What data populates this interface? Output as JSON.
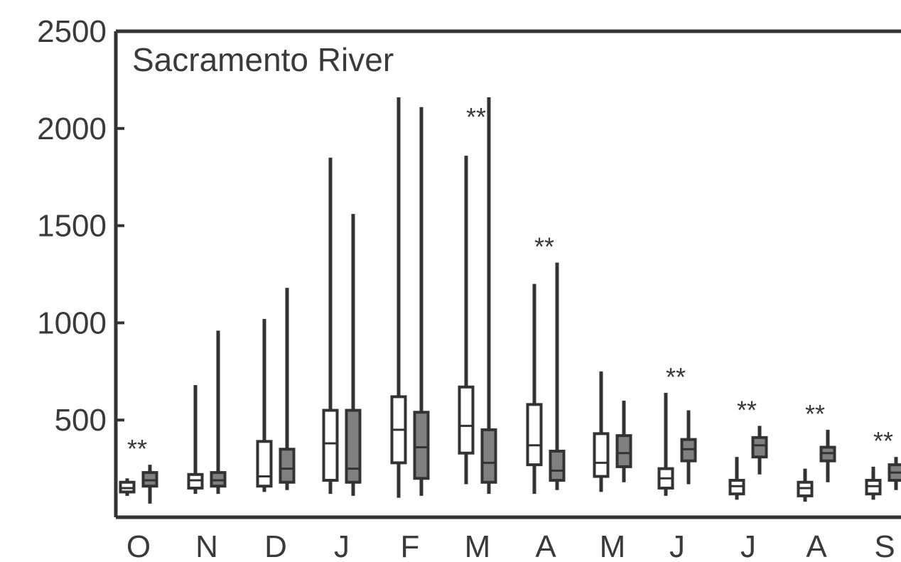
{
  "chart_data": {
    "type": "box",
    "title": "Sacramento River",
    "xlabel": "",
    "ylabel": "",
    "ylim": [
      0,
      2500
    ],
    "yticks": [
      500,
      1000,
      1500,
      2000,
      2500
    ],
    "ytick_labels": [
      "500",
      "1000",
      "1500",
      "2000",
      "2500"
    ],
    "grid": false,
    "categories": [
      "O",
      "N",
      "D",
      "J",
      "F",
      "M",
      "A",
      "M",
      "J",
      "J",
      "A",
      "S"
    ],
    "significance_marker": "**",
    "significant": [
      true,
      false,
      false,
      false,
      false,
      true,
      true,
      false,
      true,
      true,
      true,
      true
    ],
    "series": [
      {
        "fill": "#ffffff",
        "boxes": [
          {
            "min": 110,
            "q1": 130,
            "median": 150,
            "q3": 180,
            "max": 200
          },
          {
            "min": 120,
            "q1": 150,
            "median": 190,
            "q3": 220,
            "max": 680
          },
          {
            "min": 130,
            "q1": 160,
            "median": 210,
            "q3": 390,
            "max": 1020
          },
          {
            "min": 120,
            "q1": 190,
            "median": 380,
            "q3": 550,
            "max": 1850
          },
          {
            "min": 100,
            "q1": 280,
            "median": 450,
            "q3": 620,
            "max": 2160
          },
          {
            "min": 170,
            "q1": 330,
            "median": 470,
            "q3": 670,
            "max": 1860
          },
          {
            "min": 120,
            "q1": 270,
            "median": 370,
            "q3": 580,
            "max": 1200
          },
          {
            "min": 130,
            "q1": 210,
            "median": 280,
            "q3": 430,
            "max": 750
          },
          {
            "min": 110,
            "q1": 150,
            "median": 200,
            "q3": 250,
            "max": 640
          },
          {
            "min": 90,
            "q1": 120,
            "median": 160,
            "q3": 190,
            "max": 310
          },
          {
            "min": 80,
            "q1": 110,
            "median": 150,
            "q3": 180,
            "max": 250
          },
          {
            "min": 90,
            "q1": 120,
            "median": 160,
            "q3": 190,
            "max": 260
          }
        ]
      },
      {
        "fill": "#808080",
        "boxes": [
          {
            "min": 70,
            "q1": 160,
            "median": 190,
            "q3": 230,
            "max": 270
          },
          {
            "min": 120,
            "q1": 160,
            "median": 190,
            "q3": 230,
            "max": 960
          },
          {
            "min": 140,
            "q1": 180,
            "median": 250,
            "q3": 350,
            "max": 1180
          },
          {
            "min": 110,
            "q1": 180,
            "median": 250,
            "q3": 550,
            "max": 1560
          },
          {
            "min": 110,
            "q1": 200,
            "median": 360,
            "q3": 540,
            "max": 2110
          },
          {
            "min": 120,
            "q1": 180,
            "median": 280,
            "q3": 450,
            "max": 2160
          },
          {
            "min": 140,
            "q1": 190,
            "median": 240,
            "q3": 340,
            "max": 1310
          },
          {
            "min": 180,
            "q1": 260,
            "median": 330,
            "q3": 420,
            "max": 600
          },
          {
            "min": 170,
            "q1": 290,
            "median": 350,
            "q3": 400,
            "max": 550
          },
          {
            "min": 220,
            "q1": 310,
            "median": 370,
            "q3": 410,
            "max": 470
          },
          {
            "min": 180,
            "q1": 290,
            "median": 330,
            "q3": 360,
            "max": 450
          },
          {
            "min": 140,
            "q1": 190,
            "median": 230,
            "q3": 270,
            "max": 310
          }
        ]
      }
    ]
  }
}
